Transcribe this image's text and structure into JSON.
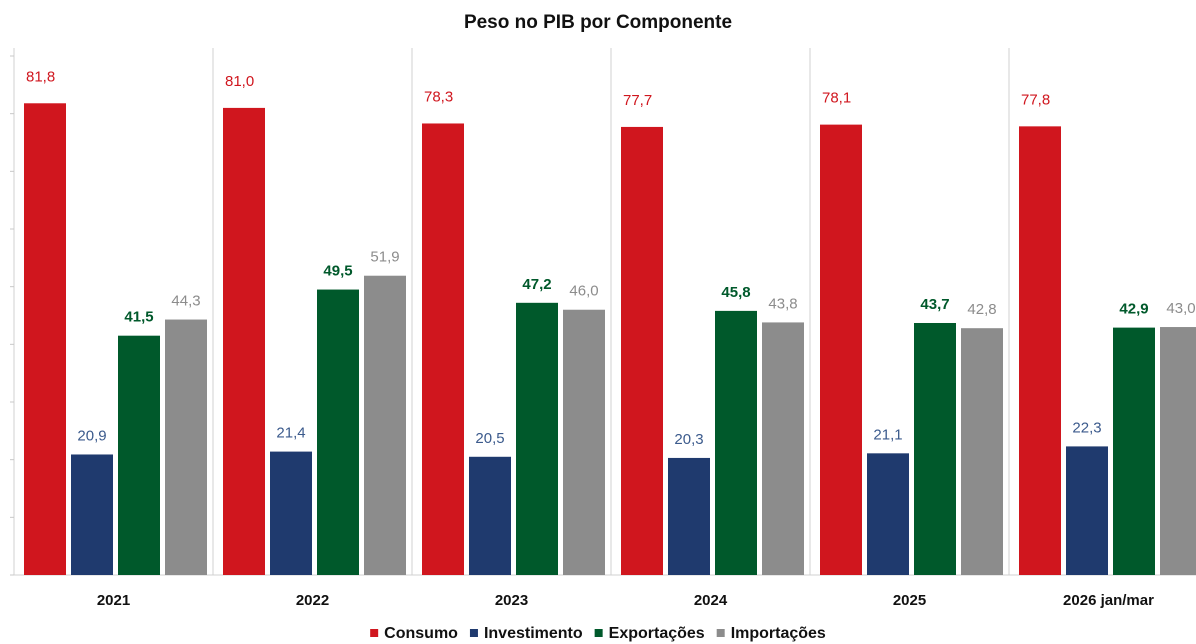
{
  "chart_data": {
    "type": "bar",
    "title": "Peso no PIB por Componente",
    "categories": [
      "2021",
      "2022",
      "2023",
      "2024",
      "2025",
      "2026 jan/mar"
    ],
    "series": [
      {
        "name": "Consumo",
        "color": "#d0161e",
        "label_color": "#d0161e",
        "values": [
          81.8,
          81.0,
          78.3,
          77.7,
          78.1,
          77.8
        ],
        "value_labels": [
          "81,8",
          "81,0",
          "78,3",
          "77,7",
          "78,1",
          "77,8"
        ]
      },
      {
        "name": "Investimento",
        "color": "#1f3a6e",
        "label_color": "#3b5a8c",
        "values": [
          20.9,
          21.4,
          20.5,
          20.3,
          21.1,
          22.3
        ],
        "value_labels": [
          "20,9",
          "21,4",
          "20,5",
          "20,3",
          "21,1",
          "22,3"
        ]
      },
      {
        "name": "Exportações",
        "color": "#00592b",
        "label_color": "#00592b",
        "values": [
          41.5,
          49.5,
          47.2,
          45.8,
          43.7,
          42.9
        ],
        "value_labels": [
          "41,5",
          "49,5",
          "47,2",
          "45,8",
          "43,7",
          "42,9"
        ]
      },
      {
        "name": "Importações",
        "color": "#8c8c8c",
        "label_color": "#8c8c8c",
        "values": [
          44.3,
          51.9,
          46.0,
          43.8,
          42.8,
          43.0
        ],
        "value_labels": [
          "44,3",
          "51,9",
          "46,0",
          "43,8",
          "42,8",
          "43,0"
        ]
      }
    ],
    "ylim": [
      0,
      90
    ],
    "yticks": [
      0,
      10,
      20,
      30,
      40,
      50,
      60,
      70,
      80,
      90
    ],
    "legend": "bottom"
  }
}
